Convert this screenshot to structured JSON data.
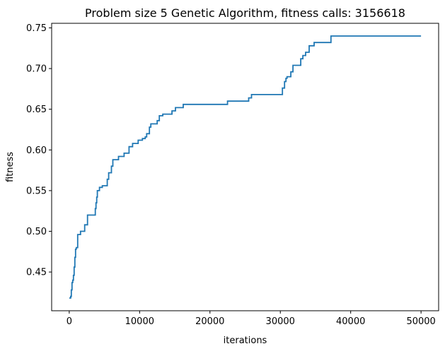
{
  "chart_data": {
    "type": "line",
    "title": "Problem size 5 Genetic Algorithm, fitness calls: 3156618",
    "xlabel": "iterations",
    "ylabel": "fitness",
    "xlim": [
      -2500,
      52500
    ],
    "ylim": [
      0.4024,
      0.7556
    ],
    "xticks": [
      0,
      10000,
      20000,
      30000,
      40000,
      50000
    ],
    "yticks": [
      0.45,
      0.5,
      0.55,
      0.6,
      0.65,
      0.7,
      0.75
    ],
    "grid": false,
    "line_color": "#1f77b4",
    "series": [
      {
        "x": [
          0,
          200,
          300,
          400,
          500,
          600,
          700,
          800,
          900,
          1000,
          1200,
          1400,
          1600,
          1800,
          2200,
          2600,
          2800,
          3600,
          3700,
          3800,
          3900,
          4000,
          4300,
          4700,
          5400,
          5600,
          6000,
          6200,
          6400,
          7000,
          7600,
          7800,
          8000,
          8500,
          9000,
          9300,
          9800,
          10400,
          10800,
          11000,
          11400,
          11600,
          12200,
          12500,
          12800,
          13300,
          14600,
          15100,
          16200,
          18000,
          20000,
          22500,
          25500,
          25900,
          27000,
          28500,
          30300,
          30600,
          30800,
          30950,
          31200,
          31500,
          31800,
          32200,
          32900,
          33200,
          33600,
          33800,
          34100,
          34300,
          34800,
          37000,
          37200,
          40000,
          45000,
          50000
        ],
        "y": [
          0.418,
          0.42,
          0.428,
          0.437,
          0.44,
          0.446,
          0.456,
          0.468,
          0.478,
          0.48,
          0.496,
          0.496,
          0.5,
          0.5,
          0.508,
          0.52,
          0.52,
          0.52,
          0.528,
          0.535,
          0.542,
          0.55,
          0.554,
          0.556,
          0.564,
          0.572,
          0.58,
          0.588,
          0.588,
          0.592,
          0.592,
          0.596,
          0.596,
          0.604,
          0.608,
          0.608,
          0.612,
          0.614,
          0.616,
          0.62,
          0.628,
          0.632,
          0.632,
          0.636,
          0.642,
          0.644,
          0.648,
          0.652,
          0.656,
          0.656,
          0.656,
          0.66,
          0.664,
          0.668,
          0.668,
          0.668,
          0.676,
          0.684,
          0.688,
          0.69,
          0.69,
          0.696,
          0.704,
          0.704,
          0.712,
          0.716,
          0.72,
          0.72,
          0.728,
          0.728,
          0.732,
          0.732,
          0.74,
          0.74,
          0.74,
          0.74
        ]
      }
    ]
  }
}
